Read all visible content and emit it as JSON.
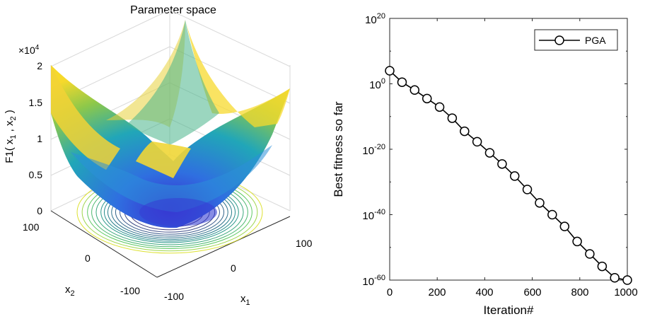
{
  "chart_data": [
    {
      "type": "surface",
      "title": "Parameter space",
      "zlabel": "F1( x1 , x2 )",
      "zlabel_parts": {
        "prefix": "F1(  x",
        "sub1": "1",
        "mid": " ,  x",
        "sub2": "2",
        "suffix": " )"
      },
      "xlabel": "x",
      "xlabel_sub": "1",
      "ylabel": "x",
      "ylabel_sub": "2",
      "zscale": {
        "base": "×10",
        "exp": "4"
      },
      "zticks": [
        "0",
        "0.5",
        "1",
        "1.5",
        "2"
      ],
      "zlim": [
        0,
        20000
      ],
      "xticks": [
        "-100",
        "0",
        "100"
      ],
      "yticks": [
        "-100",
        "0",
        "100"
      ],
      "xlim": [
        -100,
        100
      ],
      "ylim": [
        -100,
        100
      ],
      "function": "x1^2 + x2^2",
      "contour_levels": [
        500,
        1500,
        2500,
        3500,
        4500,
        5500,
        6500,
        7500,
        8500,
        9500,
        10500,
        12000,
        13500,
        15000,
        17000,
        19000
      ]
    },
    {
      "type": "line",
      "xlabel": "Iteration#",
      "ylabel": "Best fitness so far",
      "xticks": [
        "0",
        "200",
        "400",
        "600",
        "800",
        "1000"
      ],
      "xlim": [
        0,
        1000
      ],
      "ylog": true,
      "ylim_exp": [
        -60,
        20
      ],
      "yticks": [
        {
          "base": "10",
          "exp": "20"
        },
        {
          "base": "10",
          "exp": "0"
        },
        {
          "base": "10",
          "exp": "-20"
        },
        {
          "base": "10",
          "exp": "-40"
        },
        {
          "base": "10",
          "exp": "-60"
        }
      ],
      "legend": {
        "position": "top-right",
        "entries": [
          "PGA"
        ]
      },
      "series": [
        {
          "name": "PGA",
          "marker": "circle",
          "color": "#000000",
          "x": [
            0,
            52,
            105,
            157,
            210,
            263,
            315,
            368,
            421,
            473,
            526,
            579,
            631,
            684,
            736,
            789,
            842,
            894,
            947,
            1000
          ],
          "log10_y": [
            4.0,
            0.5,
            -1.9,
            -4.5,
            -7.1,
            -10.5,
            -14.5,
            -17.7,
            -21.1,
            -24.5,
            -28.2,
            -32.3,
            -36.4,
            -40.0,
            -43.6,
            -48.2,
            -52.0,
            -55.8,
            -59.3,
            -64.0
          ]
        }
      ]
    }
  ]
}
